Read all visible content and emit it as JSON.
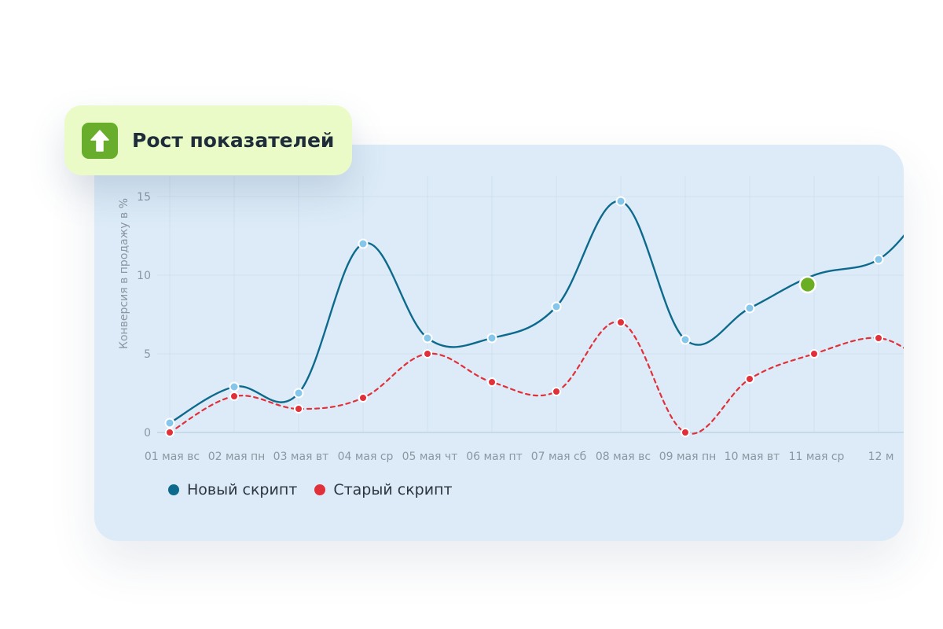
{
  "badge": {
    "title": "Рост показателей",
    "icon": "arrow-up-icon",
    "color": "#68ad2b",
    "background": "#eafbc8"
  },
  "chart_data": {
    "type": "line",
    "ylabel": "Конверсия в продажу в %",
    "xlabel": "",
    "ylim": [
      0,
      15
    ],
    "yticks": [
      0,
      5,
      10,
      15
    ],
    "grid": true,
    "legend_position": "bottom-left",
    "categories": [
      "01 мая вс",
      "02 мая пн",
      "03 мая вт",
      "04 мая ср",
      "05 мая чт",
      "06 мая пт",
      "07 мая сб",
      "08 мая вс",
      "09 мая пн",
      "10 мая вт",
      "11 мая ср",
      "12 м"
    ],
    "series": [
      {
        "name": "Новый скрипт",
        "color": "#0e6a8c",
        "marker_color": "#85c6ea",
        "style": "solid",
        "values": [
          0.6,
          2.9,
          2.5,
          12.0,
          6.0,
          6.0,
          8.0,
          14.7,
          5.9,
          7.9,
          10.0,
          11.0
        ],
        "highlight": {
          "x": 9.9,
          "y": 9.4,
          "color": "#6aaf23"
        }
      },
      {
        "name": "Старый скрипт",
        "color": "#e0313a",
        "marker_color": "#e0313a",
        "style": "dashed",
        "values": [
          0.0,
          2.3,
          1.5,
          2.2,
          5.0,
          3.2,
          2.6,
          7.0,
          0.0,
          3.4,
          5.0,
          6.0
        ]
      }
    ]
  }
}
